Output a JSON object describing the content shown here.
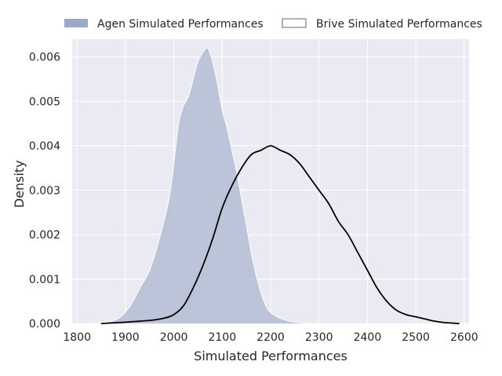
{
  "chart_data": {
    "type": "area",
    "xlabel": "Simulated Performances",
    "ylabel": "Density",
    "xlim": [
      1790,
      2610
    ],
    "ylim": [
      0,
      0.0064
    ],
    "xticks": [
      1800,
      1900,
      2000,
      2100,
      2200,
      2300,
      2400,
      2500,
      2600
    ],
    "yticks": [
      0.0,
      0.001,
      0.002,
      0.003,
      0.004,
      0.005,
      0.006
    ],
    "ytick_labels": [
      "0.000",
      "0.001",
      "0.002",
      "0.003",
      "0.004",
      "0.005",
      "0.006"
    ],
    "grid": true,
    "legend_position": "top",
    "series": [
      {
        "name": "Agen Simulated Performances",
        "style": "filled",
        "color": "#b4bdd5",
        "edge_color": "#ffffff",
        "x": [
          1830,
          1850,
          1870,
          1890,
          1910,
          1930,
          1950,
          1970,
          1990,
          2000,
          2010,
          2020,
          2030,
          2040,
          2050,
          2060,
          2070,
          2080,
          2090,
          2100,
          2110,
          2120,
          2130,
          2140,
          2150,
          2160,
          2170,
          2180,
          2190,
          2200,
          2220,
          2240,
          2260,
          2280
        ],
        "y": [
          0.0,
          2e-05,
          5e-05,
          0.00015,
          0.0004,
          0.0008,
          0.0012,
          0.0019,
          0.0028,
          0.0036,
          0.0045,
          0.0049,
          0.0051,
          0.0055,
          0.0059,
          0.0061,
          0.0062,
          0.0059,
          0.0054,
          0.0048,
          0.0044,
          0.0039,
          0.0034,
          0.0028,
          0.0022,
          0.0016,
          0.0011,
          0.0007,
          0.0004,
          0.00025,
          0.00012,
          5e-05,
          2e-05,
          0.0
        ]
      },
      {
        "name": "Brive Simulated Performances",
        "style": "line",
        "color": "#000000",
        "x": [
          1850,
          1900,
          1950,
          1980,
          2000,
          2020,
          2040,
          2060,
          2080,
          2100,
          2120,
          2140,
          2160,
          2180,
          2200,
          2220,
          2240,
          2260,
          2280,
          2300,
          2320,
          2340,
          2360,
          2380,
          2400,
          2420,
          2440,
          2460,
          2480,
          2500,
          2520,
          2540,
          2560,
          2590
        ],
        "y": [
          0.0,
          3e-05,
          7e-05,
          0.00012,
          0.0002,
          0.0004,
          0.0008,
          0.0013,
          0.0019,
          0.0026,
          0.0031,
          0.0035,
          0.0038,
          0.0039,
          0.004,
          0.0039,
          0.0038,
          0.0036,
          0.0033,
          0.003,
          0.0027,
          0.0023,
          0.002,
          0.0016,
          0.0012,
          0.0008,
          0.0005,
          0.0003,
          0.0002,
          0.00015,
          0.0001,
          5e-05,
          2e-05,
          0.0
        ]
      }
    ]
  }
}
